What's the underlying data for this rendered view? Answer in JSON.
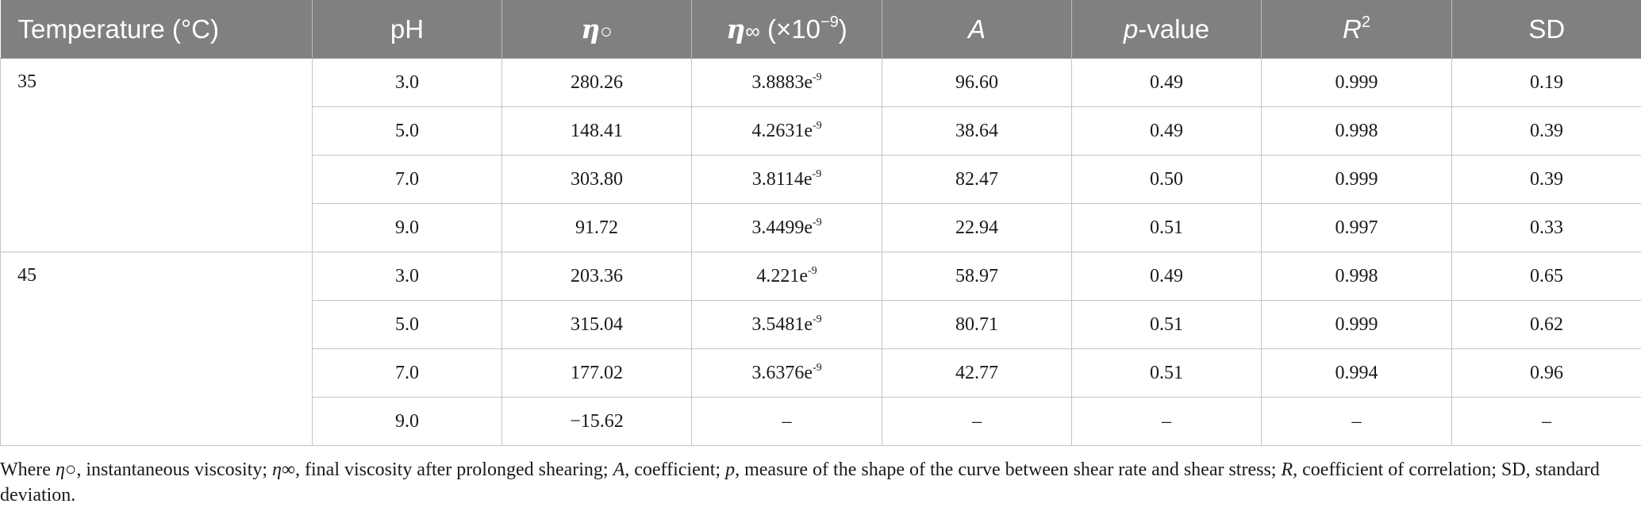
{
  "table": {
    "headers": {
      "temperature": "Temperature (°C)",
      "ph": "pH",
      "eta0_symbol": "η",
      "eta0_sub": "○",
      "etainf_symbol": "η",
      "etainf_sub": "∞",
      "etainf_unit_prefix": " (×10",
      "etainf_unit_exp": "−9",
      "etainf_unit_suffix": ")",
      "a": "A",
      "p_italic": "p",
      "p_rest": "-value",
      "r_italic": "R",
      "r_exp": "2",
      "sd": "SD"
    },
    "exp_suffix": "-9",
    "groups": [
      {
        "temperature": "35",
        "rows": [
          {
            "ph": "3.0",
            "eta0": "280.26",
            "etainf": "3.8883e",
            "a": "96.60",
            "p": "0.49",
            "r2": "0.999",
            "sd": "0.19"
          },
          {
            "ph": "5.0",
            "eta0": "148.41",
            "etainf": "4.2631e",
            "a": "38.64",
            "p": "0.49",
            "r2": "0.998",
            "sd": "0.39"
          },
          {
            "ph": "7.0",
            "eta0": "303.80",
            "etainf": "3.8114e",
            "a": "82.47",
            "p": "0.50",
            "r2": "0.999",
            "sd": "0.39"
          },
          {
            "ph": "9.0",
            "eta0": "91.72",
            "etainf": "3.4499e",
            "a": "22.94",
            "p": "0.51",
            "r2": "0.997",
            "sd": "0.33"
          }
        ]
      },
      {
        "temperature": "45",
        "rows": [
          {
            "ph": "3.0",
            "eta0": "203.36",
            "etainf": "4.221e",
            "a": "58.97",
            "p": "0.49",
            "r2": "0.998",
            "sd": "0.65"
          },
          {
            "ph": "5.0",
            "eta0": "315.04",
            "etainf": "3.5481e",
            "a": "80.71",
            "p": "0.51",
            "r2": "0.999",
            "sd": "0.62"
          },
          {
            "ph": "7.0",
            "eta0": "177.02",
            "etainf": "3.6376e",
            "a": "42.77",
            "p": "0.51",
            "r2": "0.994",
            "sd": "0.96"
          },
          {
            "ph": "9.0",
            "eta0": "−15.62",
            "etainf": "–",
            "a": "–",
            "p": "–",
            "r2": "–",
            "sd": "–"
          }
        ]
      }
    ]
  },
  "footnote": {
    "t1": "Where ",
    "s1": "η",
    "t2": "○, instantaneous viscosity; ",
    "s2": "η",
    "t3": "∞, final viscosity after prolonged shearing; ",
    "s3": "A",
    "t4": ", coefficient; ",
    "s4": "p",
    "t5": ", measure of the shape of the curve between shear rate and shear stress; ",
    "s5": "R",
    "t6": ", coefficient of correlation; SD, standard deviation."
  },
  "colors": {
    "header_bg": "#808080",
    "header_text": "#ffffff",
    "grid": "#c4c4c4"
  }
}
